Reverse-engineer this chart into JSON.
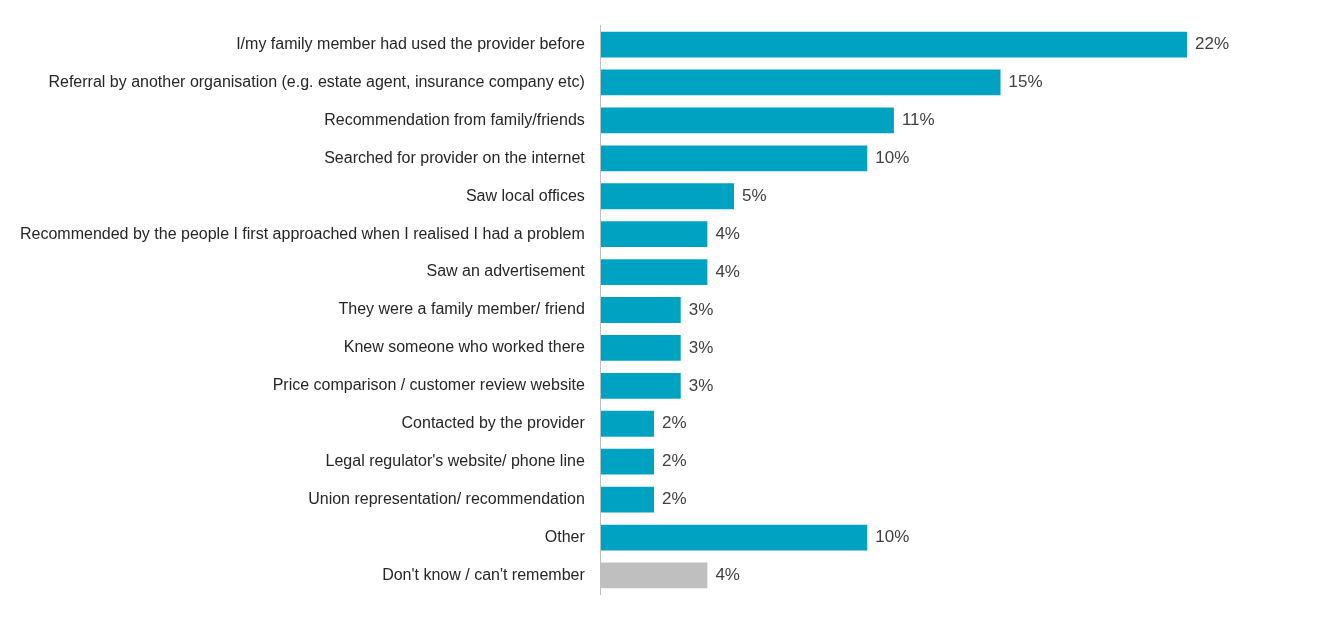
{
  "chart_data": {
    "type": "bar",
    "orientation": "horizontal",
    "categories": [
      "I/my family member had used the provider before",
      "Referral by another organisation (e.g. estate agent, insurance company etc)",
      "Recommendation from family/friends",
      "Searched for provider on the internet",
      "Saw local offices",
      "Recommended by the people I first approached when I realised I had a problem",
      "Saw an advertisement",
      "They were a family member/ friend",
      "Knew someone who worked there",
      "Price comparison / customer review website",
      "Contacted by the provider",
      "Legal regulator's website/ phone line",
      "Union representation/ recommendation",
      "Other",
      "Don't know / can't remember"
    ],
    "values": [
      22,
      15,
      11,
      10,
      5,
      4,
      4,
      3,
      3,
      3,
      2,
      2,
      2,
      10,
      4
    ],
    "value_labels": [
      "22%",
      "15%",
      "11%",
      "10%",
      "5%",
      "4%",
      "4%",
      "3%",
      "3%",
      "3%",
      "2%",
      "2%",
      "2%",
      "10%",
      "4%"
    ],
    "colors": [
      "#00a2c2",
      "#00a2c2",
      "#00a2c2",
      "#00a2c2",
      "#00a2c2",
      "#00a2c2",
      "#00a2c2",
      "#00a2c2",
      "#00a2c2",
      "#00a2c2",
      "#00a2c2",
      "#00a2c2",
      "#00a2c2",
      "#00a2c2",
      "#bfbfbf"
    ],
    "legend": false
  }
}
